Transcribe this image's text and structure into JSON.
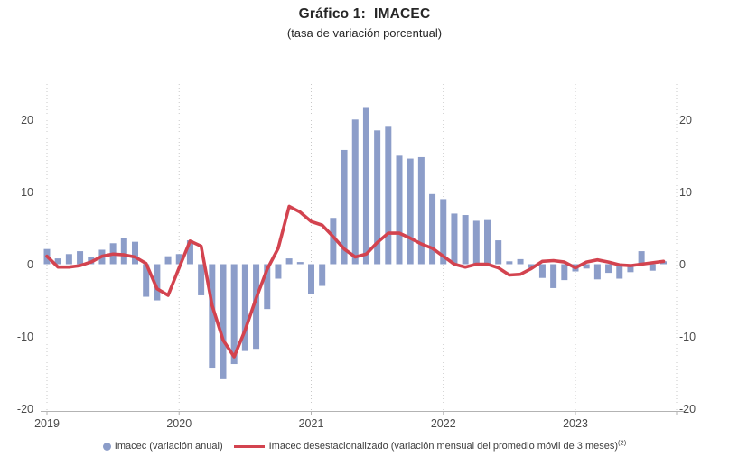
{
  "title": "Gráfico 1:  IMACEC",
  "subtitle": "(tasa de variación porcentual)",
  "legend": {
    "bars_label": "Imacec (variación anual)",
    "line_label": "Imacec desestacionalizado (variación mensual del promedio móvil de 3 meses)",
    "line_label_superscript": "(2)"
  },
  "colors": {
    "bar": "#8C9DC9",
    "line": "#D3434F",
    "gridline": "#c8c8c8",
    "axis_line": "#b3b3b3",
    "tick_label": "#4a4a4a",
    "title_text": "#262626"
  },
  "chart_data": {
    "type": "bar",
    "combo": "bar+line",
    "title": "Gráfico 1: IMACEC",
    "subtitle": "(tasa de variación porcentual)",
    "xlabel": "",
    "ylabel": "",
    "ylim": [
      -20,
      25
    ],
    "y_ticks": [
      20,
      10,
      0,
      -10,
      -20
    ],
    "y_axis_sides": [
      "left",
      "right"
    ],
    "x_tick_labels": [
      "2019",
      "2020",
      "2021",
      "2022",
      "2023"
    ],
    "grid": "vertical dotted gridlines at each year start",
    "legend_position": "bottom center",
    "x_monthly": [
      "2019-01",
      "2019-02",
      "2019-03",
      "2019-04",
      "2019-05",
      "2019-06",
      "2019-07",
      "2019-08",
      "2019-09",
      "2019-10",
      "2019-11",
      "2019-12",
      "2020-01",
      "2020-02",
      "2020-03",
      "2020-04",
      "2020-05",
      "2020-06",
      "2020-07",
      "2020-08",
      "2020-09",
      "2020-10",
      "2020-11",
      "2020-12",
      "2021-01",
      "2021-02",
      "2021-03",
      "2021-04",
      "2021-05",
      "2021-06",
      "2021-07",
      "2021-08",
      "2021-09",
      "2021-10",
      "2021-11",
      "2021-12",
      "2022-01",
      "2022-02",
      "2022-03",
      "2022-04",
      "2022-05",
      "2022-06",
      "2022-07",
      "2022-08",
      "2022-09",
      "2022-10",
      "2022-11",
      "2022-12",
      "2023-01",
      "2023-02",
      "2023-03",
      "2023-04",
      "2023-05",
      "2023-06",
      "2023-07",
      "2023-08",
      "2023-09"
    ],
    "series": [
      {
        "name": "Imacec (variación anual)",
        "style": "bar",
        "values": [
          2.1,
          0.8,
          1.4,
          1.8,
          1.0,
          2.0,
          2.9,
          3.6,
          3.1,
          -4.5,
          -5.0,
          1.1,
          1.4,
          3.3,
          -4.3,
          -14.3,
          -15.9,
          -13.8,
          -12.0,
          -11.7,
          -6.2,
          -2.0,
          0.8,
          0.3,
          -4.1,
          -3.0,
          6.4,
          15.8,
          20.0,
          21.6,
          18.5,
          19.0,
          15.0,
          14.6,
          14.8,
          9.7,
          9.0,
          7.0,
          6.8,
          6.0,
          6.1,
          3.3,
          0.4,
          0.7,
          -0.5,
          -1.9,
          -3.3,
          -2.2,
          -1.0,
          -0.6,
          -2.1,
          -1.2,
          -2.0,
          -1.1,
          1.8,
          -0.9,
          0.4
        ]
      },
      {
        "name": "Imacec desestacionalizado (variación mensual del promedio móvil de 3 meses)",
        "style": "line",
        "values": [
          1.1,
          -0.4,
          -0.4,
          -0.2,
          0.3,
          1.1,
          1.4,
          1.3,
          1.0,
          0.1,
          -3.4,
          -4.3,
          -0.5,
          3.2,
          2.5,
          -5.7,
          -10.5,
          -12.8,
          -9.1,
          -4.7,
          -0.7,
          2.2,
          8.0,
          7.2,
          5.9,
          5.4,
          3.8,
          2.1,
          1.0,
          1.4,
          3.0,
          4.3,
          4.3,
          3.6,
          2.8,
          2.2,
          1.1,
          0.0,
          -0.4,
          0.0,
          0.0,
          -0.5,
          -1.5,
          -1.4,
          -0.6,
          0.4,
          0.5,
          0.3,
          -0.5,
          0.3,
          0.6,
          0.3,
          -0.1,
          -0.2,
          0.0,
          0.2,
          0.4
        ]
      }
    ]
  }
}
